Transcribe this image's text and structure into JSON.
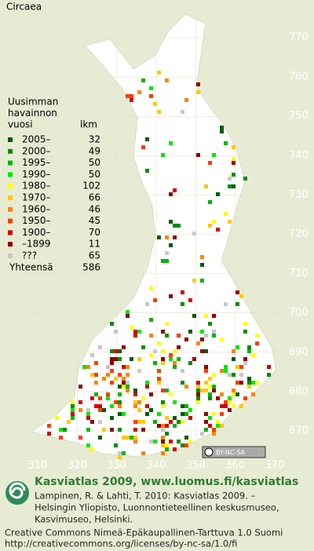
{
  "title": "Circaea",
  "legend": {
    "header": [
      "Uusimman",
      "havainnon",
      "vuosi"
    ],
    "count_header": "lkm",
    "items": [
      {
        "label": "2005–",
        "count": 32,
        "color": "#005a00"
      },
      {
        "label": "2000–",
        "count": 49,
        "color": "#008c00"
      },
      {
        "label": "1995–",
        "count": 50,
        "color": "#00b400"
      },
      {
        "label": "1990–",
        "count": 50,
        "color": "#00e600"
      },
      {
        "label": "1980–",
        "count": 102,
        "color": "#ffff00"
      },
      {
        "label": "1970–",
        "count": 66,
        "color": "#ffc800"
      },
      {
        "label": "1960–",
        "count": 46,
        "color": "#ff8200"
      },
      {
        "label": "1950–",
        "count": 45,
        "color": "#ff3c00"
      },
      {
        "label": "1900–",
        "count": 70,
        "color": "#d20000"
      },
      {
        "label": "–1899",
        "count": 11,
        "color": "#8c0000"
      },
      {
        "label": "???",
        "count": 65,
        "color": "#c8c8c8"
      }
    ],
    "total_label": "Yhteensä",
    "total": 586
  },
  "grid": {
    "x_ticks": [
      310,
      320,
      330,
      340,
      350,
      360,
      370
    ],
    "y_ticks": [
      670,
      680,
      690,
      700,
      710,
      720,
      730,
      740,
      750,
      760,
      770
    ]
  },
  "license_badge": "BY-NC-SA",
  "footer": {
    "heading": "Kasviatlas 2009, www.luomus.fi/kasviatlas",
    "citation": [
      "Lampinen, R. & Lahti, T. 2010: Kasviatlas 2009. –",
      "Helsingin Yliopisto, Luonnontieteellinen keskusmuseo,",
      "Kasvimuseo, Helsinki."
    ],
    "license": [
      "Creative Commons Nimeä-Epäkaupallinen-Tarttuva 1.0 Suomi",
      "http://creativecommons.org/licenses/by-nc-sa/1.0/fi"
    ]
  }
}
